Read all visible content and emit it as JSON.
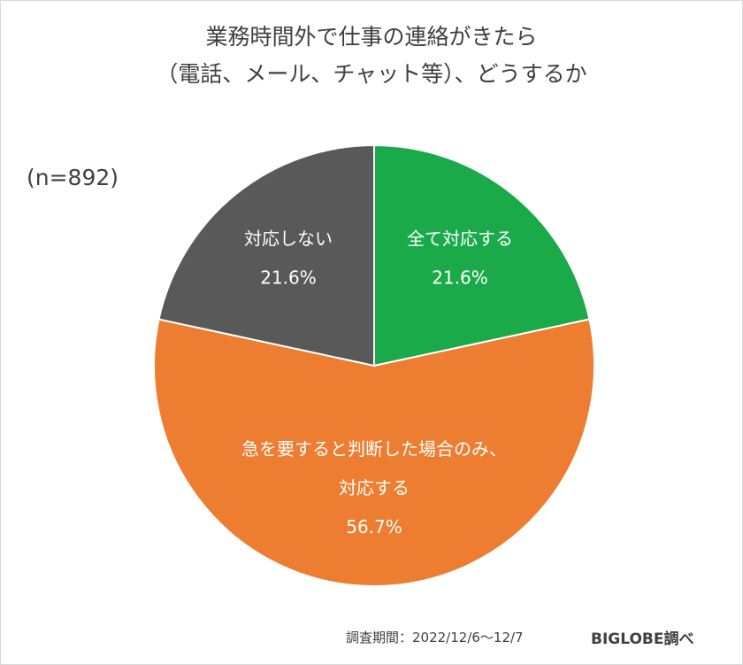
{
  "chart_data": {
    "type": "pie",
    "title_lines": [
      "業務時間外で仕事の連絡がきたら",
      "（電話、メール、チャット等）、どうするか"
    ],
    "sample_size": "(n=892)",
    "slices": [
      {
        "label_lines": [
          "全て対応する"
        ],
        "value": 21.6,
        "value_label": "21.6%",
        "color": "#1aaa4a"
      },
      {
        "label_lines": [
          "急を要すると判断した場合のみ、",
          "対応する"
        ],
        "value": 56.7,
        "value_label": "56.7%",
        "color": "#ed7d31"
      },
      {
        "label_lines": [
          "対応しない"
        ],
        "value": 21.6,
        "value_label": "21.6%",
        "color": "#595959"
      }
    ],
    "start": "12 o'clock",
    "direction": "clockwise"
  },
  "footer": {
    "period": "調査期間：2022/12/6～12/7",
    "source": "BIGLOBE調べ"
  }
}
